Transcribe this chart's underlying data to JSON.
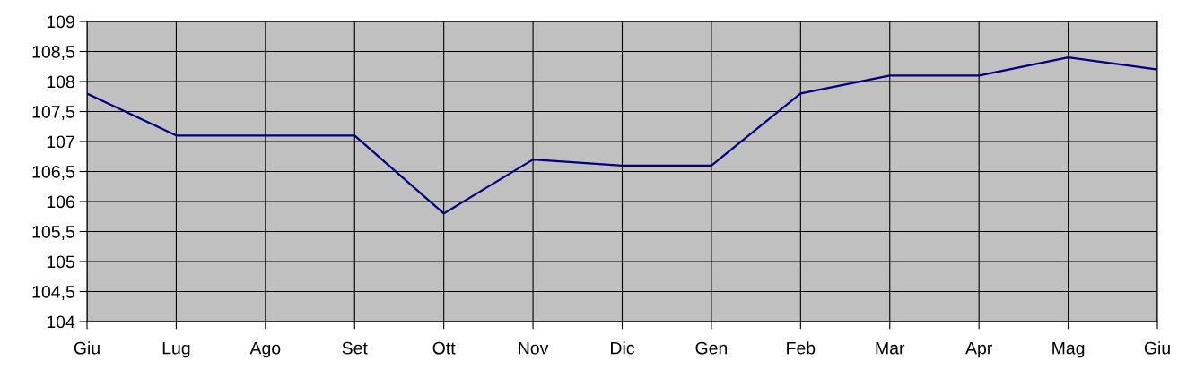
{
  "chart_data": {
    "type": "line",
    "categories": [
      "Giu",
      "Lug",
      "Ago",
      "Set",
      "Ott",
      "Nov",
      "Dic",
      "Gen",
      "Feb",
      "Mar",
      "Apr",
      "Mag",
      "Giu"
    ],
    "series": [
      {
        "color": "#000080",
        "values": [
          107.8,
          107.1,
          107.1,
          107.1,
          105.8,
          106.7,
          106.6,
          106.6,
          107.8,
          108.1,
          108.1,
          108.4,
          108.2
        ]
      }
    ],
    "ylim": [
      104,
      109
    ],
    "yticks": [
      104,
      {
        "value": 104.5,
        "label": "104,5"
      },
      105,
      {
        "value": 105.5,
        "label": "105,5"
      },
      106,
      {
        "value": 106.5,
        "label": "106,5"
      },
      107,
      {
        "value": 107.5,
        "label": "107,5"
      },
      108,
      {
        "value": 108.5,
        "label": "108,5"
      },
      109
    ],
    "grid": true,
    "marker": "none",
    "line_style": "solid"
  }
}
